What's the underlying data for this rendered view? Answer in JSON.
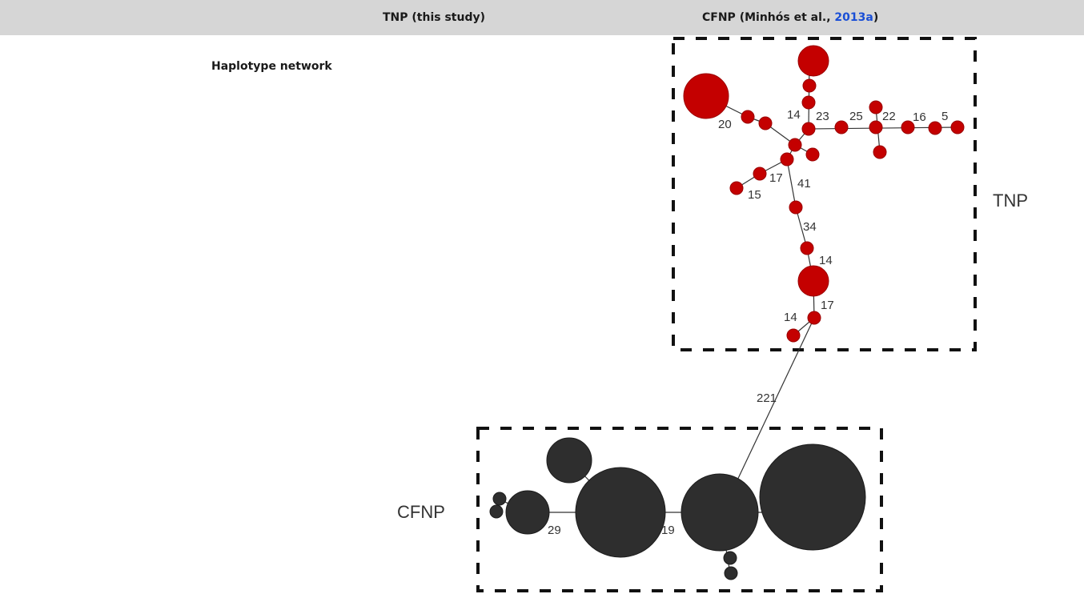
{
  "header": {
    "col1": "TNP (this study)",
    "col2_prefix": "CFNP (Minhós et al., ",
    "col2_link": "2013a",
    "col2_suffix": ")"
  },
  "row_label": "Haplotype network",
  "groups": {
    "tnp": "TNP",
    "cfnp": "CFNP"
  },
  "edge_labels": {
    "e20": "20",
    "e14a": "14",
    "e23": "23",
    "e25": "25",
    "e22": "22",
    "e16": "16",
    "e5": "5",
    "e17a": "17",
    "e41": "41",
    "e15": "15",
    "e34": "34",
    "e14b": "14",
    "e17b": "17",
    "e14c": "14",
    "e221": "221",
    "e29": "29",
    "e19": "19"
  },
  "colors": {
    "tnp": "#c40000",
    "cfnp": "#2e2e2e",
    "header_bg": "#d6d6d6",
    "link": "#1a4fd6"
  }
}
